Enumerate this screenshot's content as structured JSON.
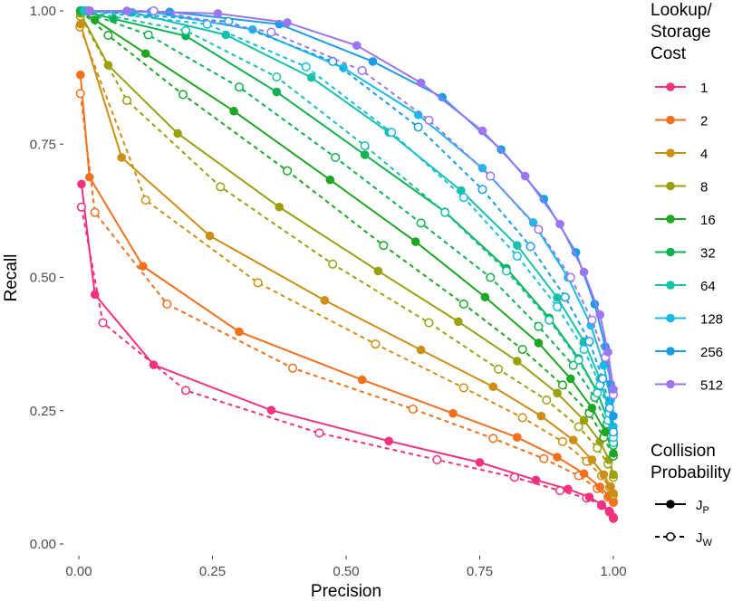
{
  "chart_data": {
    "type": "line",
    "title": "",
    "xlabel": "Precision",
    "ylabel": "Recall",
    "xlim": [
      0,
      1
    ],
    "ylim": [
      0,
      1
    ],
    "xticks": [
      "0.00",
      "0.25",
      "0.50",
      "0.75",
      "1.00"
    ],
    "yticks": [
      "0.00",
      "0.25",
      "0.50",
      "0.75",
      "1.00"
    ],
    "grid": false,
    "legend_color_title": [
      "Lookup/",
      "Storage",
      "Cost"
    ],
    "legend_line_title": [
      "Collision",
      "Probability"
    ],
    "legend_line_items": [
      {
        "label_main": "J",
        "label_sub": "P",
        "style": "solid-filled"
      },
      {
        "label_main": "J",
        "label_sub": "W",
        "style": "dashed-open"
      }
    ],
    "legend_placement": "right",
    "series": [
      {
        "name": "1",
        "color": "#F2317F",
        "jp": [
          [
            0.005,
            0.675
          ],
          [
            0.03,
            0.468
          ],
          [
            0.14,
            0.336
          ],
          [
            0.36,
            0.251
          ],
          [
            0.58,
            0.193
          ],
          [
            0.75,
            0.153
          ],
          [
            0.855,
            0.12
          ],
          [
            0.915,
            0.103
          ],
          [
            0.955,
            0.088
          ],
          [
            0.978,
            0.074
          ],
          [
            0.992,
            0.062
          ],
          [
            1.0,
            0.05
          ]
        ],
        "jw": [
          [
            0.005,
            0.632
          ],
          [
            0.045,
            0.415
          ],
          [
            0.2,
            0.288
          ],
          [
            0.45,
            0.208
          ],
          [
            0.67,
            0.158
          ],
          [
            0.815,
            0.125
          ],
          [
            0.9,
            0.1
          ],
          [
            0.95,
            0.086
          ],
          [
            0.978,
            0.072
          ],
          [
            0.993,
            0.06
          ],
          [
            1.0,
            0.048
          ]
        ]
      },
      {
        "name": "2",
        "color": "#F2701D",
        "jp": [
          [
            0.003,
            0.88
          ],
          [
            0.02,
            0.688
          ],
          [
            0.12,
            0.521
          ],
          [
            0.3,
            0.398
          ],
          [
            0.53,
            0.308
          ],
          [
            0.7,
            0.245
          ],
          [
            0.82,
            0.2
          ],
          [
            0.895,
            0.163
          ],
          [
            0.945,
            0.132
          ],
          [
            0.975,
            0.107
          ],
          [
            0.992,
            0.09
          ],
          [
            1.0,
            0.08
          ]
        ],
        "jw": [
          [
            0.003,
            0.845
          ],
          [
            0.03,
            0.622
          ],
          [
            0.165,
            0.45
          ],
          [
            0.4,
            0.33
          ],
          [
            0.625,
            0.253
          ],
          [
            0.775,
            0.198
          ],
          [
            0.87,
            0.16
          ],
          [
            0.935,
            0.128
          ],
          [
            0.97,
            0.104
          ],
          [
            0.99,
            0.088
          ],
          [
            1.0,
            0.078
          ]
        ]
      },
      {
        "name": "4",
        "color": "#CC8F15",
        "jp": [
          [
            0.003,
            0.975
          ],
          [
            0.08,
            0.725
          ],
          [
            0.245,
            0.578
          ],
          [
            0.46,
            0.457
          ],
          [
            0.64,
            0.364
          ],
          [
            0.775,
            0.295
          ],
          [
            0.865,
            0.24
          ],
          [
            0.925,
            0.195
          ],
          [
            0.96,
            0.158
          ],
          [
            0.982,
            0.13
          ],
          [
            0.995,
            0.108
          ],
          [
            1.0,
            0.095
          ]
        ],
        "jw": [
          [
            0.002,
            0.97
          ],
          [
            0.125,
            0.645
          ],
          [
            0.335,
            0.49
          ],
          [
            0.555,
            0.375
          ],
          [
            0.72,
            0.293
          ],
          [
            0.83,
            0.237
          ],
          [
            0.905,
            0.192
          ],
          [
            0.95,
            0.155
          ],
          [
            0.978,
            0.128
          ],
          [
            0.993,
            0.106
          ],
          [
            1.0,
            0.092
          ]
        ]
      },
      {
        "name": "8",
        "color": "#9BA00F",
        "jp": [
          [
            0.003,
            0.995
          ],
          [
            0.055,
            0.898
          ],
          [
            0.185,
            0.77
          ],
          [
            0.375,
            0.632
          ],
          [
            0.56,
            0.512
          ],
          [
            0.71,
            0.417
          ],
          [
            0.82,
            0.343
          ],
          [
            0.895,
            0.283
          ],
          [
            0.945,
            0.232
          ],
          [
            0.975,
            0.192
          ],
          [
            0.992,
            0.158
          ],
          [
            1.0,
            0.13
          ]
        ],
        "jw": [
          [
            0.003,
            0.99
          ],
          [
            0.09,
            0.832
          ],
          [
            0.265,
            0.67
          ],
          [
            0.475,
            0.525
          ],
          [
            0.655,
            0.415
          ],
          [
            0.785,
            0.328
          ],
          [
            0.875,
            0.27
          ],
          [
            0.935,
            0.22
          ],
          [
            0.97,
            0.18
          ],
          [
            0.99,
            0.15
          ],
          [
            1.0,
            0.125
          ]
        ]
      },
      {
        "name": "16",
        "color": "#1FA624",
        "jp": [
          [
            0.003,
            1.0
          ],
          [
            0.03,
            0.983
          ],
          [
            0.125,
            0.92
          ],
          [
            0.29,
            0.812
          ],
          [
            0.47,
            0.683
          ],
          [
            0.63,
            0.567
          ],
          [
            0.76,
            0.463
          ],
          [
            0.86,
            0.377
          ],
          [
            0.92,
            0.31
          ],
          [
            0.96,
            0.255
          ],
          [
            0.985,
            0.21
          ],
          [
            1.0,
            0.17
          ]
        ],
        "jw": [
          [
            0.003,
            1.0
          ],
          [
            0.055,
            0.954
          ],
          [
            0.195,
            0.843
          ],
          [
            0.39,
            0.7
          ],
          [
            0.57,
            0.56
          ],
          [
            0.72,
            0.45
          ],
          [
            0.83,
            0.365
          ],
          [
            0.905,
            0.298
          ],
          [
            0.955,
            0.245
          ],
          [
            0.982,
            0.2
          ],
          [
            1.0,
            0.165
          ]
        ]
      },
      {
        "name": "32",
        "color": "#10B150",
        "jp": [
          [
            0.005,
            1.0
          ],
          [
            0.065,
            0.985
          ],
          [
            0.2,
            0.953
          ],
          [
            0.37,
            0.848
          ],
          [
            0.535,
            0.73
          ],
          [
            0.685,
            0.623
          ],
          [
            0.8,
            0.517
          ],
          [
            0.88,
            0.424
          ],
          [
            0.935,
            0.348
          ],
          [
            0.97,
            0.285
          ],
          [
            0.99,
            0.232
          ],
          [
            1.0,
            0.19
          ]
        ],
        "jw": [
          [
            0.005,
            1.0
          ],
          [
            0.13,
            0.955
          ],
          [
            0.3,
            0.857
          ],
          [
            0.48,
            0.725
          ],
          [
            0.64,
            0.602
          ],
          [
            0.77,
            0.5
          ],
          [
            0.86,
            0.408
          ],
          [
            0.925,
            0.335
          ],
          [
            0.965,
            0.275
          ],
          [
            0.988,
            0.225
          ],
          [
            1.0,
            0.185
          ]
        ]
      },
      {
        "name": "64",
        "color": "#19C1A8",
        "jp": [
          [
            0.01,
            1.0
          ],
          [
            0.1,
            0.997
          ],
          [
            0.275,
            0.955
          ],
          [
            0.435,
            0.875
          ],
          [
            0.58,
            0.772
          ],
          [
            0.715,
            0.663
          ],
          [
            0.82,
            0.56
          ],
          [
            0.895,
            0.462
          ],
          [
            0.945,
            0.38
          ],
          [
            0.975,
            0.31
          ],
          [
            0.992,
            0.25
          ],
          [
            1.0,
            0.205
          ]
        ],
        "jw": [
          [
            0.01,
            1.0
          ],
          [
            0.2,
            0.963
          ],
          [
            0.37,
            0.876
          ],
          [
            0.535,
            0.747
          ],
          [
            0.685,
            0.622
          ],
          [
            0.8,
            0.512
          ],
          [
            0.88,
            0.42
          ],
          [
            0.935,
            0.345
          ],
          [
            0.97,
            0.283
          ],
          [
            0.99,
            0.232
          ],
          [
            1.0,
            0.19
          ]
        ]
      },
      {
        "name": "128",
        "color": "#16BDE2",
        "jp": [
          [
            0.015,
            1.0
          ],
          [
            0.135,
            0.998
          ],
          [
            0.325,
            0.965
          ],
          [
            0.495,
            0.893
          ],
          [
            0.635,
            0.805
          ],
          [
            0.755,
            0.705
          ],
          [
            0.85,
            0.603
          ],
          [
            0.915,
            0.5
          ],
          [
            0.958,
            0.41
          ],
          [
            0.982,
            0.335
          ],
          [
            0.995,
            0.27
          ],
          [
            1.0,
            0.22
          ]
        ],
        "jw": [
          [
            0.015,
            1.0
          ],
          [
            0.24,
            0.975
          ],
          [
            0.425,
            0.895
          ],
          [
            0.585,
            0.772
          ],
          [
            0.72,
            0.65
          ],
          [
            0.82,
            0.54
          ],
          [
            0.895,
            0.445
          ],
          [
            0.945,
            0.365
          ],
          [
            0.975,
            0.298
          ],
          [
            0.992,
            0.245
          ],
          [
            1.0,
            0.2
          ]
        ]
      },
      {
        "name": "256",
        "color": "#1A9DE6",
        "jp": [
          [
            0.02,
            1.0
          ],
          [
            0.17,
            0.998
          ],
          [
            0.375,
            0.975
          ],
          [
            0.55,
            0.905
          ],
          [
            0.68,
            0.838
          ],
          [
            0.79,
            0.74
          ],
          [
            0.87,
            0.647
          ],
          [
            0.93,
            0.547
          ],
          [
            0.965,
            0.45
          ],
          [
            0.985,
            0.37
          ],
          [
            0.995,
            0.3
          ],
          [
            1.0,
            0.24
          ]
        ],
        "jw": [
          [
            0.02,
            1.0
          ],
          [
            0.28,
            0.98
          ],
          [
            0.475,
            0.905
          ],
          [
            0.635,
            0.782
          ],
          [
            0.755,
            0.665
          ],
          [
            0.845,
            0.558
          ],
          [
            0.91,
            0.463
          ],
          [
            0.955,
            0.38
          ],
          [
            0.98,
            0.31
          ],
          [
            0.993,
            0.255
          ],
          [
            1.0,
            0.21
          ]
        ]
      },
      {
        "name": "512",
        "color": "#9C75F1",
        "jp": [
          [
            0.02,
            1.0
          ],
          [
            0.09,
            1.0
          ],
          [
            0.26,
            0.995
          ],
          [
            0.39,
            0.978
          ],
          [
            0.52,
            0.935
          ],
          [
            0.64,
            0.865
          ],
          [
            0.755,
            0.775
          ],
          [
            0.835,
            0.69
          ],
          [
            0.9,
            0.6
          ],
          [
            0.945,
            0.51
          ],
          [
            0.975,
            0.43
          ],
          [
            0.99,
            0.36
          ],
          [
            1.0,
            0.29
          ]
        ],
        "jw": [
          [
            0.02,
            1.0
          ],
          [
            0.14,
            1.0
          ],
          [
            0.36,
            0.96
          ],
          [
            0.53,
            0.888
          ],
          [
            0.655,
            0.795
          ],
          [
            0.77,
            0.69
          ],
          [
            0.86,
            0.59
          ],
          [
            0.92,
            0.5
          ],
          [
            0.96,
            0.42
          ],
          [
            0.985,
            0.35
          ],
          [
            1.0,
            0.28
          ]
        ]
      }
    ]
  }
}
